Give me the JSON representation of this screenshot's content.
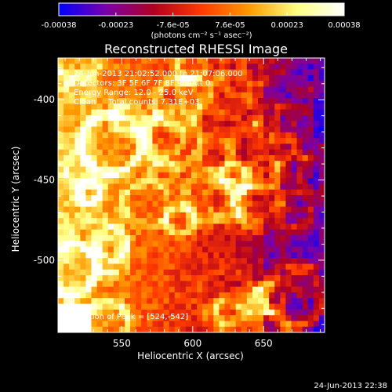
{
  "chart_data": {
    "type": "heatmap",
    "title": "Reconstructed RHESSI Image",
    "xlabel": "Heliocentric X (arcsec)",
    "ylabel": "Heliocentric Y (arcsec)",
    "xlim": [
      505,
      693
    ],
    "ylim": [
      -545,
      -374
    ],
    "x_ticks": [
      550,
      600,
      650
    ],
    "y_ticks": [
      -400,
      -450,
      -500
    ],
    "colorbar": {
      "units": "(photons cm⁻² s⁻¹ asec⁻²)",
      "min": -0.00038,
      "max": 0.00038,
      "tick_labels": [
        "-0.00038",
        "-0.00023",
        "-7.6e-05",
        "7.6e-05",
        "0.00023",
        "0.00038"
      ],
      "colors": [
        "#0000ff",
        "#7a00a8",
        "#b00020",
        "#ff3a00",
        "#ff9a00",
        "#ffff80",
        "#ffffff"
      ]
    },
    "annotations": [
      "24-Jun-2013 21:02:52.000 to 21:07:06.000",
      "Detectors: 3F 5F 6F 7F 8F 9F, Att 0",
      "Energy Range: 12.0 - 25.0 keV",
      "Clean     Total counts: 7.31E+03"
    ],
    "peak_label": "Position of Peak = [524,-542]",
    "peak_position": [
      524,
      -542
    ]
  },
  "footer_date": "24-Jun-2013 22:38"
}
